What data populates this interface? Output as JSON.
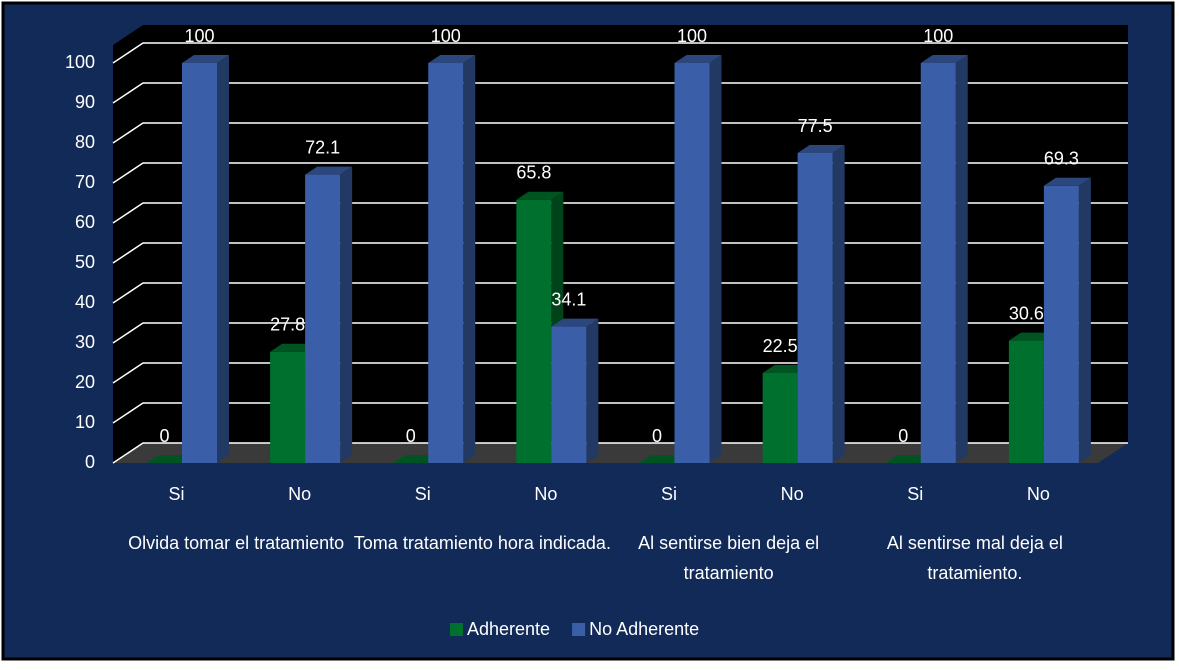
{
  "chart_data": {
    "type": "bar3d",
    "categories": [
      "Si",
      "No",
      "Si",
      "No",
      "Si",
      "No",
      "Si",
      "No"
    ],
    "groups": [
      "Olvida tomar el tratamiento",
      "Toma tratamiento hora indicada.",
      "Al sentirse bien deja el tratamiento",
      "Al sentirse mal deja el tratamiento."
    ],
    "series": [
      {
        "name": "Adherente",
        "color": "#00702e",
        "values": [
          0,
          27.8,
          0,
          65.8,
          0,
          22.5,
          0,
          30.6
        ]
      },
      {
        "name": "No Adherente",
        "color": "#3a5fa8",
        "values": [
          100,
          72.1,
          100,
          34.1,
          100,
          77.5,
          100,
          69.3
        ]
      }
    ],
    "ylim": [
      0,
      100
    ],
    "yticks": [
      0,
      10,
      20,
      30,
      40,
      50,
      60,
      70,
      80,
      90,
      100
    ],
    "grid": true,
    "legend": "bottom"
  }
}
